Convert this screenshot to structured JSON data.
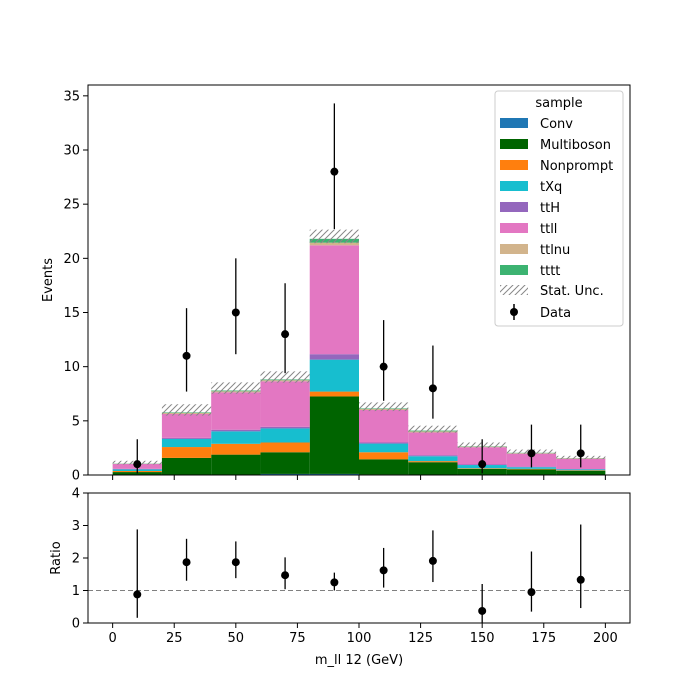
{
  "chart_data": [
    {
      "type": "bar",
      "stacked": true,
      "ylabel": "Events",
      "ylim": [
        0,
        36
      ],
      "yticks": [
        0,
        5,
        10,
        15,
        20,
        25,
        30,
        35
      ],
      "xlim": [
        -10,
        210
      ],
      "bins": [
        [
          0,
          20
        ],
        [
          20,
          40
        ],
        [
          40,
          60
        ],
        [
          60,
          80
        ],
        [
          80,
          100
        ],
        [
          100,
          120
        ],
        [
          120,
          140
        ],
        [
          140,
          160
        ],
        [
          160,
          180
        ],
        [
          180,
          200
        ]
      ],
      "legend": {
        "title": "sample",
        "placement": "top-right"
      },
      "series": [
        {
          "name": "Conv",
          "color": "#1f77b4",
          "values": [
            0.02,
            0.03,
            0.03,
            0.1,
            0.1,
            0.05,
            0.03,
            0.02,
            0.02,
            0.02
          ]
        },
        {
          "name": "Multiboson",
          "color": "#006400",
          "values": [
            0.25,
            1.55,
            1.85,
            2.0,
            7.15,
            1.4,
            1.15,
            0.55,
            0.5,
            0.35
          ]
        },
        {
          "name": "Nonprompt",
          "color": "#ff7f0e",
          "values": [
            0.1,
            1.0,
            1.0,
            0.9,
            0.45,
            0.65,
            0.1,
            0.05,
            0.05,
            0.05
          ]
        },
        {
          "name": "tXq",
          "color": "#17becf",
          "values": [
            0.15,
            0.75,
            1.15,
            1.3,
            2.95,
            0.8,
            0.45,
            0.3,
            0.15,
            0.1
          ]
        },
        {
          "name": "ttH",
          "color": "#9467bd",
          "values": [
            0.05,
            0.1,
            0.15,
            0.15,
            0.5,
            0.1,
            0.1,
            0.05,
            0.05,
            0.03
          ]
        },
        {
          "name": "ttll",
          "color": "#e377c2",
          "values": [
            0.45,
            2.2,
            3.45,
            4.2,
            10.05,
            3.0,
            2.1,
            1.6,
            1.2,
            0.95
          ]
        },
        {
          "name": "ttlnu",
          "color": "#d2b48c",
          "values": [
            0.02,
            0.1,
            0.1,
            0.1,
            0.25,
            0.1,
            0.1,
            0.05,
            0.05,
            0.05
          ]
        },
        {
          "name": "tttt",
          "color": "#3cb371",
          "values": [
            0.02,
            0.05,
            0.07,
            0.07,
            0.35,
            0.05,
            0.07,
            0.03,
            0.03,
            0.02
          ]
        }
      ],
      "stat_unc": {
        "name": "Stat. Unc.",
        "up": [
          0.25,
          0.75,
          0.75,
          0.75,
          0.85,
          0.55,
          0.45,
          0.35,
          0.3,
          0.2
        ],
        "down": [
          0.1,
          0.3,
          0.3,
          0.3,
          0.4,
          0.25,
          0.2,
          0.15,
          0.1,
          0.1
        ]
      },
      "data": {
        "name": "Data",
        "x": [
          10,
          30,
          50,
          70,
          90,
          110,
          130,
          150,
          170,
          190
        ],
        "y": [
          1,
          11,
          15,
          13,
          28,
          10,
          8,
          1,
          2,
          2
        ],
        "err_low": [
          0.85,
          3.3,
          3.85,
          3.6,
          5.3,
          3.15,
          2.8,
          0.85,
          1.3,
          1.3
        ],
        "err_high": [
          2.3,
          4.4,
          5.0,
          4.7,
          6.3,
          4.3,
          3.95,
          2.3,
          2.65,
          2.65
        ]
      }
    },
    {
      "type": "scatter",
      "xlabel": "m_ll 12 (GeV)",
      "ylabel": "Ratio",
      "ylim": [
        0,
        4
      ],
      "yticks": [
        0,
        1,
        2,
        3,
        4
      ],
      "xlim": [
        -10,
        210
      ],
      "xticks": [
        0,
        25,
        50,
        75,
        100,
        125,
        150,
        175,
        200
      ],
      "reference_line": 1,
      "x": [
        10,
        30,
        50,
        70,
        90,
        110,
        130,
        150,
        170,
        190
      ],
      "y": [
        0.88,
        1.87,
        1.87,
        1.47,
        1.25,
        1.62,
        1.91,
        0.37,
        0.95,
        1.33
      ],
      "err_low": [
        0.72,
        0.57,
        0.49,
        0.43,
        0.25,
        0.53,
        0.65,
        0.37,
        0.6,
        0.87
      ],
      "err_high": [
        2.0,
        0.72,
        0.64,
        0.55,
        0.3,
        0.69,
        0.94,
        0.83,
        1.25,
        1.7
      ]
    }
  ]
}
